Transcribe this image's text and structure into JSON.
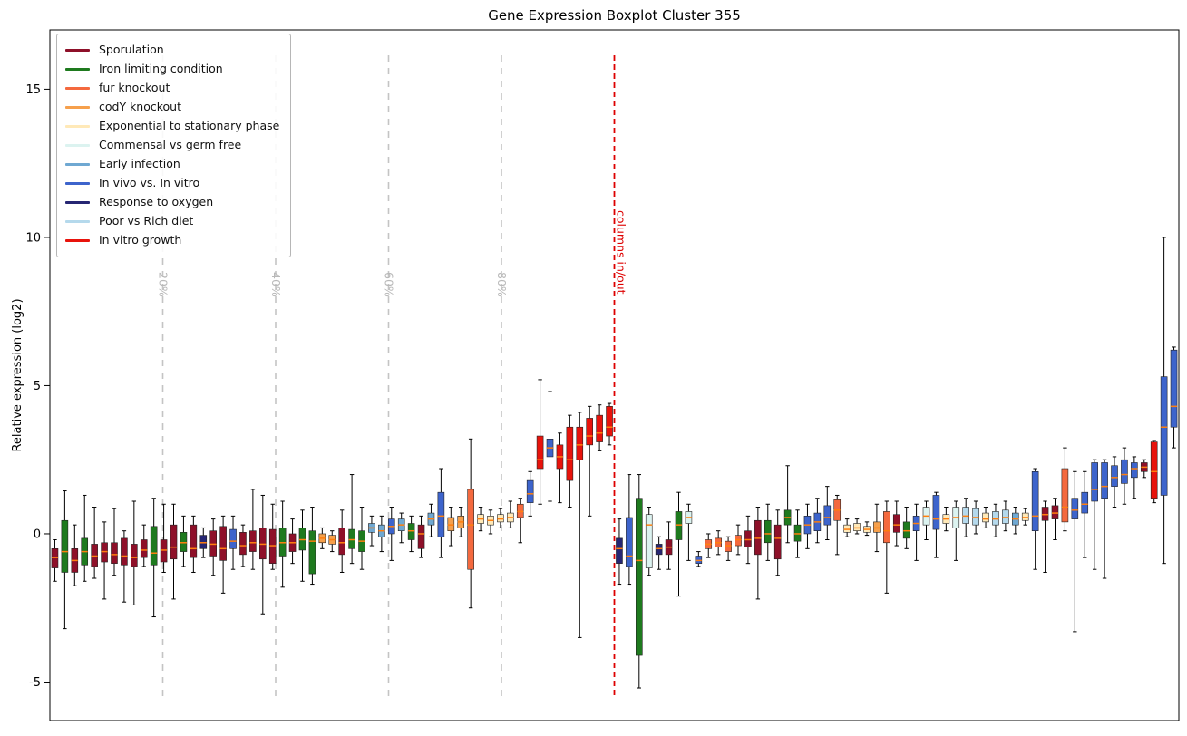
{
  "chart_data": {
    "type": "boxplot",
    "title": "Gene Expression Boxplot Cluster 355",
    "xlabel": "",
    "ylabel": "Relative expression (log2)",
    "ylim": [
      -6.3,
      17.0
    ],
    "yticks": [
      -5,
      0,
      5,
      10,
      15
    ],
    "grid": false,
    "legend_position": "upper left",
    "median_color": "#ff7f0e",
    "whisker_color": "#000000",
    "groups": [
      {
        "name": "Sporulation",
        "color": "#8e1029"
      },
      {
        "name": "Iron limiting condition",
        "color": "#1e7a1e"
      },
      {
        "name": "fur knockout",
        "color": "#f4693e"
      },
      {
        "name": "codY knockout",
        "color": "#f6a04c"
      },
      {
        "name": "Exponential to stationary phase",
        "color": "#ffe9b8"
      },
      {
        "name": "Commensal vs germ free",
        "color": "#dcf3f0"
      },
      {
        "name": "Early infection",
        "color": "#6fa8d2"
      },
      {
        "name": "In vivo vs. In vitro",
        "color": "#3d64cc"
      },
      {
        "name": "Response to oxygen",
        "color": "#262673"
      },
      {
        "name": "Poor vs Rich diet",
        "color": "#b5d9ec"
      },
      {
        "name": "In vitro growth",
        "color": "#e8130c"
      }
    ],
    "percent_lines": {
      "fractions": [
        20,
        40,
        60,
        80
      ],
      "labels": [
        "20%",
        "40%",
        "60%",
        "80%"
      ],
      "color": "#c4c4c4",
      "label_color": "#b9b9b9"
    },
    "divider": {
      "label": "columns in/out",
      "color": "#dd0000",
      "after_box_index": 57
    },
    "box_format": [
      "group_index",
      "whisker_low",
      "q1",
      "median",
      "q3",
      "whisker_high"
    ],
    "boxes": [
      [
        0,
        -1.6,
        -1.15,
        -0.8,
        -0.5,
        -0.2
      ],
      [
        1,
        -3.2,
        -1.3,
        -0.6,
        0.45,
        1.45
      ],
      [
        0,
        -1.75,
        -1.3,
        -0.9,
        -0.5,
        0.3
      ],
      [
        1,
        -1.6,
        -1.05,
        -0.6,
        -0.15,
        1.3
      ],
      [
        0,
        -1.5,
        -1.1,
        -0.75,
        -0.35,
        0.9
      ],
      [
        0,
        -2.2,
        -0.95,
        -0.6,
        -0.3,
        0.4
      ],
      [
        0,
        -1.4,
        -1.0,
        -0.7,
        -0.3,
        0.85
      ],
      [
        0,
        -2.3,
        -1.05,
        -0.75,
        -0.15,
        0.1
      ],
      [
        0,
        -2.4,
        -1.1,
        -0.8,
        -0.35,
        1.1
      ],
      [
        0,
        -1.1,
        -0.8,
        -0.55,
        -0.2,
        0.3
      ],
      [
        1,
        -2.8,
        -1.05,
        -0.65,
        0.25,
        1.2
      ],
      [
        0,
        -1.3,
        -0.95,
        -0.55,
        -0.2,
        1.0
      ],
      [
        0,
        -2.2,
        -0.85,
        -0.45,
        0.3,
        1.0
      ],
      [
        1,
        -1.1,
        -0.6,
        -0.3,
        0.05,
        0.6
      ],
      [
        0,
        -1.3,
        -0.8,
        -0.5,
        0.3,
        0.6
      ],
      [
        8,
        -0.8,
        -0.5,
        -0.3,
        -0.05,
        0.2
      ],
      [
        0,
        -1.4,
        -0.75,
        -0.35,
        0.1,
        0.5
      ],
      [
        0,
        -2.0,
        -0.9,
        -0.5,
        0.25,
        0.6
      ],
      [
        7,
        -1.2,
        -0.5,
        -0.25,
        0.15,
        0.6
      ],
      [
        0,
        -1.1,
        -0.7,
        -0.4,
        0.05,
        0.3
      ],
      [
        0,
        -1.2,
        -0.6,
        -0.3,
        0.1,
        1.5
      ],
      [
        0,
        -2.7,
        -0.85,
        -0.35,
        0.2,
        1.3
      ],
      [
        0,
        -1.2,
        -1.0,
        -0.4,
        0.15,
        1.0
      ],
      [
        1,
        -1.8,
        -0.75,
        -0.3,
        0.2,
        1.1
      ],
      [
        0,
        -1.0,
        -0.6,
        -0.3,
        0.0,
        0.5
      ],
      [
        1,
        -1.6,
        -0.55,
        -0.2,
        0.2,
        0.8
      ],
      [
        1,
        -1.7,
        -1.35,
        -0.25,
        0.1,
        0.9
      ],
      [
        3,
        -0.5,
        -0.3,
        -0.15,
        0.0,
        0.2
      ],
      [
        3,
        -0.6,
        -0.35,
        -0.2,
        -0.05,
        0.1
      ],
      [
        0,
        -1.3,
        -0.7,
        -0.3,
        0.2,
        0.8
      ],
      [
        1,
        -1.0,
        -0.5,
        -0.2,
        0.15,
        2.0
      ],
      [
        1,
        -1.2,
        -0.6,
        -0.25,
        0.1,
        0.9
      ],
      [
        6,
        -0.4,
        0.05,
        0.2,
        0.35,
        0.6
      ],
      [
        6,
        -0.6,
        -0.1,
        0.1,
        0.3,
        0.6
      ],
      [
        7,
        -0.9,
        0.0,
        0.25,
        0.5,
        0.9
      ],
      [
        6,
        -0.3,
        0.1,
        0.3,
        0.5,
        0.7
      ],
      [
        1,
        -0.6,
        -0.2,
        0.1,
        0.35,
        0.6
      ],
      [
        0,
        -0.8,
        -0.5,
        0.0,
        0.3,
        0.6
      ],
      [
        6,
        -0.1,
        0.3,
        0.5,
        0.7,
        1.0
      ],
      [
        7,
        -0.8,
        -0.1,
        0.6,
        1.4,
        2.2
      ],
      [
        3,
        -0.4,
        0.1,
        0.3,
        0.55,
        0.9
      ],
      [
        3,
        -0.1,
        0.2,
        0.4,
        0.6,
        0.9
      ],
      [
        2,
        -2.5,
        -1.2,
        0.3,
        1.5,
        3.2
      ],
      [
        4,
        0.1,
        0.35,
        0.5,
        0.65,
        0.9
      ],
      [
        4,
        0.0,
        0.3,
        0.45,
        0.6,
        0.8
      ],
      [
        4,
        0.2,
        0.4,
        0.5,
        0.65,
        0.85
      ],
      [
        4,
        0.2,
        0.4,
        0.55,
        0.7,
        1.1
      ],
      [
        2,
        -0.3,
        0.55,
        0.75,
        1.0,
        1.2
      ],
      [
        7,
        0.6,
        1.05,
        1.35,
        1.8,
        2.1
      ],
      [
        10,
        1.0,
        2.2,
        2.5,
        3.3,
        5.2
      ],
      [
        7,
        1.1,
        2.6,
        2.9,
        3.2,
        4.8
      ],
      [
        10,
        1.05,
        2.2,
        2.6,
        3.0,
        3.4
      ],
      [
        10,
        0.9,
        1.8,
        2.5,
        3.6,
        4.0
      ],
      [
        10,
        -3.5,
        2.5,
        3.0,
        3.6,
        4.1
      ],
      [
        10,
        0.6,
        3.0,
        3.3,
        3.9,
        4.3
      ],
      [
        10,
        2.8,
        3.1,
        3.4,
        4.0,
        4.35
      ],
      [
        10,
        3.0,
        3.3,
        3.6,
        4.3,
        4.4
      ],
      [
        8,
        -1.7,
        -1.0,
        -0.5,
        -0.15,
        0.5
      ],
      [
        7,
        -1.7,
        -1.1,
        -0.75,
        0.55,
        2.0
      ],
      [
        1,
        -5.2,
        -4.1,
        -0.9,
        1.2,
        2.0
      ],
      [
        5,
        -1.4,
        -1.15,
        0.3,
        0.65,
        0.9
      ],
      [
        8,
        -1.2,
        -0.7,
        -0.5,
        -0.35,
        -0.1
      ],
      [
        0,
        -1.2,
        -0.7,
        -0.45,
        -0.2,
        0.4
      ],
      [
        1,
        -2.1,
        -0.2,
        0.3,
        0.75,
        1.4
      ],
      [
        5,
        -0.9,
        0.35,
        0.55,
        0.75,
        1.0
      ],
      [
        7,
        -1.1,
        -1.0,
        -0.9,
        -0.75,
        -0.6
      ],
      [
        2,
        -0.8,
        -0.5,
        -0.35,
        -0.2,
        0.0
      ],
      [
        2,
        -0.7,
        -0.45,
        -0.3,
        -0.15,
        0.1
      ],
      [
        2,
        -0.9,
        -0.6,
        -0.4,
        -0.25,
        -0.1
      ],
      [
        2,
        -0.7,
        -0.4,
        -0.2,
        -0.05,
        0.3
      ],
      [
        0,
        -1.0,
        -0.45,
        -0.2,
        0.1,
        0.6
      ],
      [
        0,
        -2.2,
        -0.7,
        -0.15,
        0.45,
        0.9
      ],
      [
        1,
        -0.9,
        -0.3,
        0.0,
        0.45,
        1.0
      ],
      [
        0,
        -1.4,
        -0.85,
        -0.15,
        0.3,
        0.8
      ],
      [
        1,
        -0.3,
        0.3,
        0.55,
        0.8,
        2.3
      ],
      [
        1,
        -0.8,
        -0.25,
        0.0,
        0.3,
        0.8
      ],
      [
        7,
        -0.5,
        0.0,
        0.3,
        0.6,
        1.0
      ],
      [
        7,
        -0.3,
        0.1,
        0.4,
        0.7,
        1.2
      ],
      [
        7,
        -0.2,
        0.3,
        0.55,
        0.95,
        1.6
      ],
      [
        2,
        -0.7,
        0.45,
        0.8,
        1.15,
        1.3
      ],
      [
        4,
        -0.1,
        0.05,
        0.15,
        0.3,
        0.5
      ],
      [
        4,
        0.0,
        0.1,
        0.2,
        0.35,
        0.5
      ],
      [
        4,
        -0.05,
        0.05,
        0.15,
        0.25,
        0.4
      ],
      [
        3,
        -0.6,
        0.05,
        0.2,
        0.4,
        1.0
      ],
      [
        2,
        -2.0,
        -0.3,
        0.1,
        0.75,
        1.1
      ],
      [
        0,
        -0.4,
        0.05,
        0.3,
        0.65,
        1.1
      ],
      [
        1,
        -0.5,
        -0.15,
        0.1,
        0.4,
        0.9
      ],
      [
        7,
        -0.9,
        0.1,
        0.35,
        0.6,
        1.0
      ],
      [
        5,
        -0.2,
        0.3,
        0.6,
        0.9,
        1.1
      ],
      [
        7,
        -0.8,
        0.15,
        0.5,
        1.3,
        1.4
      ],
      [
        4,
        0.1,
        0.35,
        0.5,
        0.65,
        0.9
      ],
      [
        5,
        -0.9,
        0.2,
        0.55,
        0.9,
        1.1
      ],
      [
        9,
        -0.1,
        0.35,
        0.6,
        0.9,
        1.2
      ],
      [
        9,
        0.0,
        0.3,
        0.55,
        0.85,
        1.1
      ],
      [
        4,
        0.2,
        0.4,
        0.5,
        0.7,
        0.9
      ],
      [
        9,
        -0.1,
        0.3,
        0.5,
        0.75,
        1.0
      ],
      [
        9,
        0.1,
        0.35,
        0.55,
        0.8,
        1.1
      ],
      [
        6,
        0.0,
        0.3,
        0.5,
        0.7,
        0.9
      ],
      [
        4,
        0.3,
        0.45,
        0.55,
        0.7,
        0.85
      ],
      [
        7,
        -1.2,
        0.1,
        0.6,
        2.1,
        2.2
      ],
      [
        0,
        -1.3,
        0.45,
        0.65,
        0.9,
        1.1
      ],
      [
        0,
        -0.2,
        0.5,
        0.7,
        0.95,
        1.2
      ],
      [
        2,
        0.1,
        0.4,
        0.9,
        2.2,
        2.9
      ],
      [
        7,
        -3.3,
        0.5,
        0.8,
        1.2,
        2.1
      ],
      [
        7,
        -0.8,
        0.7,
        1.0,
        1.4,
        2.1
      ],
      [
        7,
        -1.2,
        1.1,
        1.5,
        2.4,
        2.5
      ],
      [
        7,
        -1.5,
        1.2,
        1.6,
        2.4,
        2.5
      ],
      [
        7,
        0.9,
        1.6,
        1.9,
        2.3,
        2.6
      ],
      [
        7,
        1.0,
        1.7,
        2.0,
        2.5,
        2.9
      ],
      [
        7,
        1.2,
        1.9,
        2.2,
        2.4,
        2.6
      ],
      [
        0,
        1.9,
        2.1,
        2.25,
        2.4,
        2.5
      ],
      [
        10,
        1.05,
        1.2,
        2.1,
        3.1,
        3.15
      ],
      [
        7,
        -1.0,
        1.3,
        3.6,
        5.3,
        10.0
      ],
      [
        7,
        2.9,
        3.6,
        4.3,
        6.2,
        6.3
      ]
    ]
  }
}
